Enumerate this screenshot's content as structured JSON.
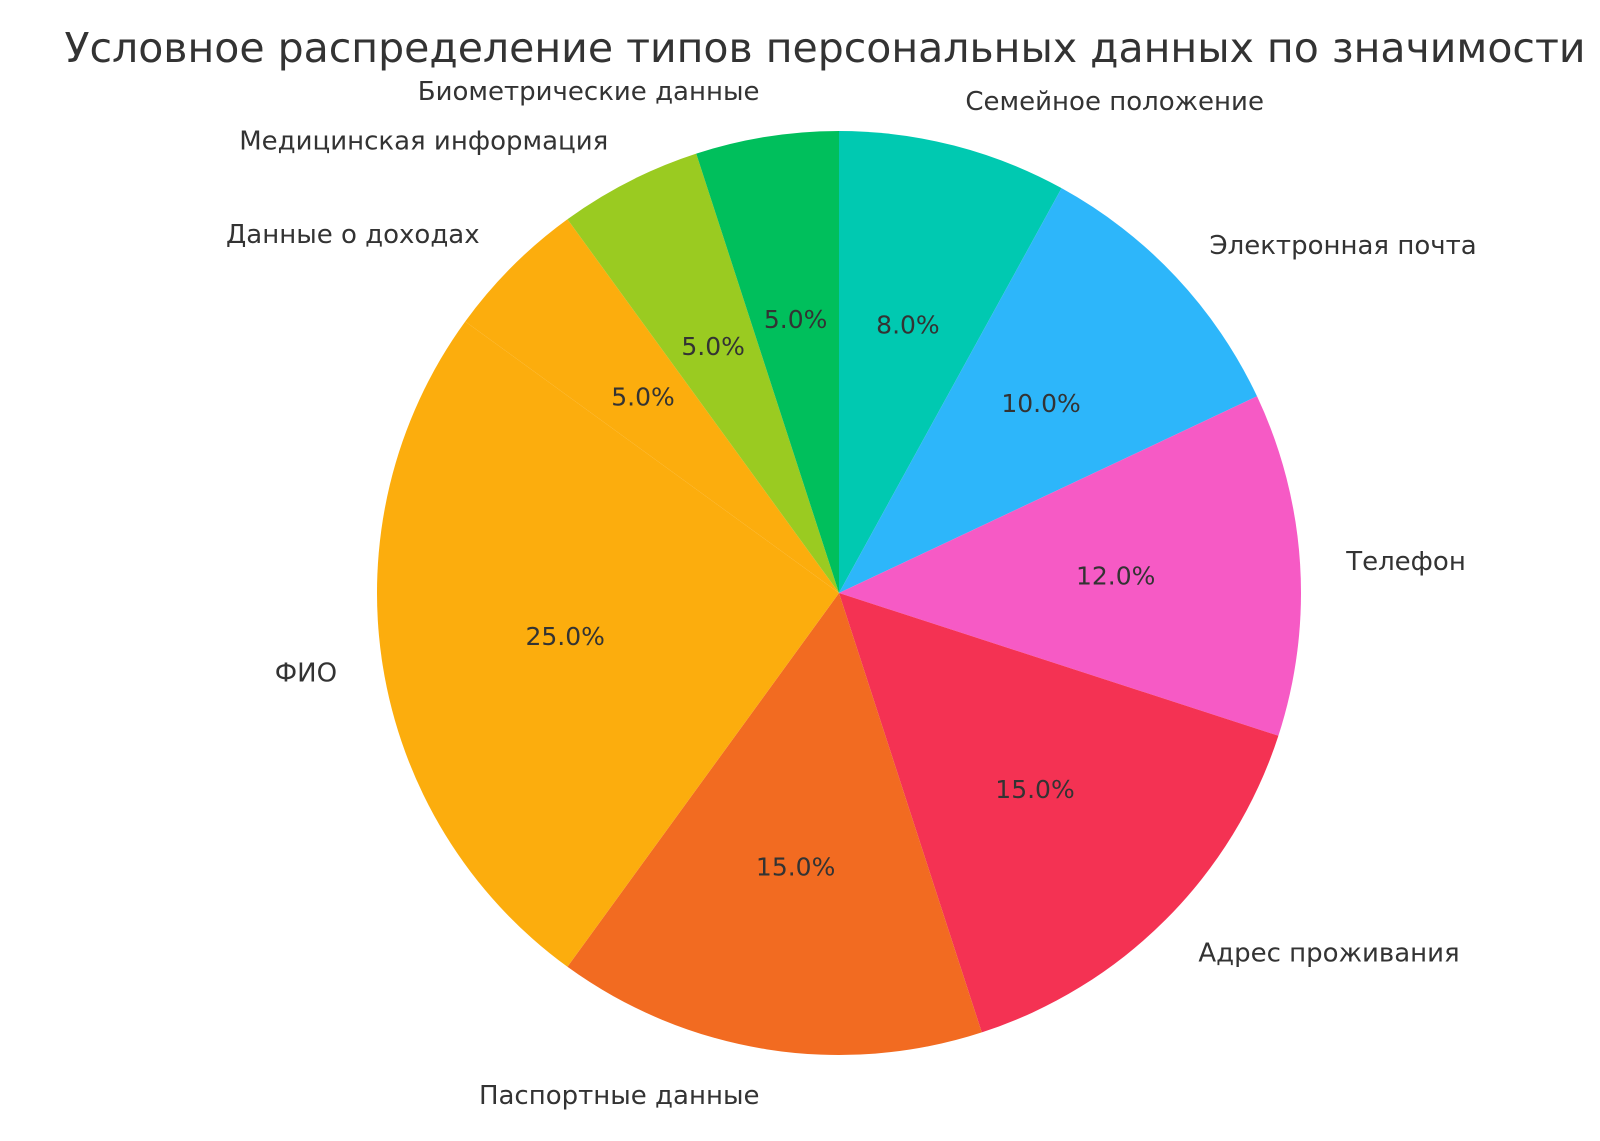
{
  "page": {
    "background_color": "#ffffff",
    "text_color": "#333333"
  },
  "chart_data": {
    "type": "pie",
    "title": "Условное распределение типов персональных данных по значимости",
    "start_angle_deg": 90,
    "direction": "clockwise",
    "label_distance": 1.1,
    "pct_distance": 0.6,
    "legend": "none",
    "text_color": "#333333",
    "slices": [
      {
        "label": "Семейное положение",
        "value": 8,
        "pct_label": "8.0%",
        "color": "#00c9b1"
      },
      {
        "label": "Электронная почта",
        "value": 10,
        "pct_label": "10.0%",
        "color": "#2db6fa"
      },
      {
        "label": "Телефон",
        "value": 12,
        "pct_label": "12.0%",
        "color": "#f65ac5"
      },
      {
        "label": "Адрес проживания",
        "value": 15,
        "pct_label": "15.0%",
        "color": "#f43253"
      },
      {
        "label": "Паспортные данные",
        "value": 15,
        "pct_label": "15.0%",
        "color": "#f26b21"
      },
      {
        "label": "ФИО",
        "value": 25,
        "pct_label": "25.0%",
        "color": "#fcad0d"
      },
      {
        "label": "Данные о доходах",
        "value": 5,
        "pct_label": "5.0%",
        "color": "#fcad0d"
      },
      {
        "label": "Медицинская информация",
        "value": 5,
        "pct_label": "5.0%",
        "color": "#9acb21"
      },
      {
        "label": "Биометрические данные",
        "value": 5,
        "pct_label": "5.0%",
        "color": "#00bf5c"
      }
    ]
  }
}
